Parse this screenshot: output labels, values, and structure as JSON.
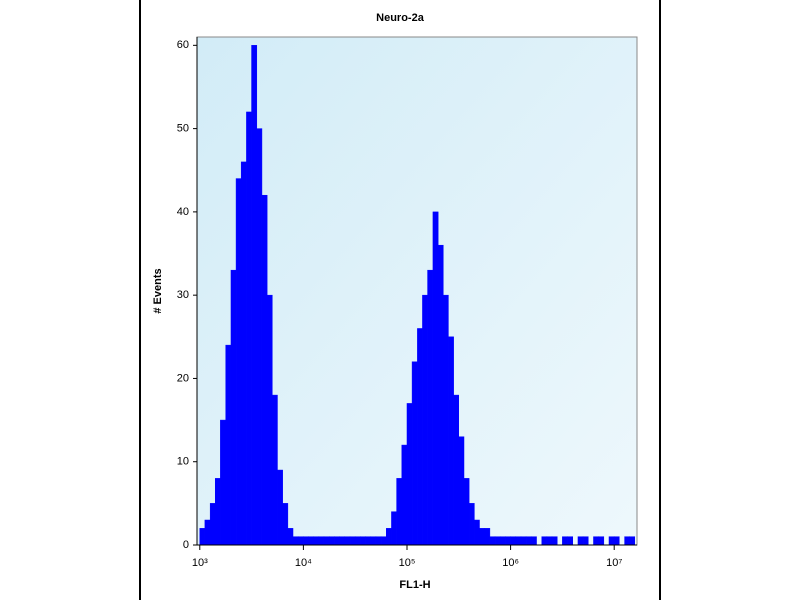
{
  "chart_data": {
    "type": "histogram",
    "title": "Neuro-2a",
    "x_label": "FL1-H",
    "y_label": "# Events",
    "log_x": true,
    "color": "#0000ff",
    "bins": [
      1000,
      1120,
      1260,
      1410,
      1580,
      1780,
      2000,
      2240,
      2510,
      2820,
      3160,
      3550,
      3980,
      4470,
      5010,
      5620,
      6310,
      7080,
      7940,
      8910,
      10000,
      11200,
      12600,
      14100,
      15800,
      17800,
      20000,
      22400,
      25100,
      28200,
      31600,
      35500,
      39800,
      44700,
      50100,
      56200,
      63100,
      70800,
      79400,
      89100,
      100000,
      112000,
      126000,
      141000,
      158000,
      178000,
      200000,
      224000,
      251000,
      282000,
      316000,
      355000,
      398000,
      447000,
      501000,
      562000,
      631000,
      708000,
      794000,
      891000,
      1000000,
      1120000,
      1260000,
      1410000,
      1580000,
      1780000,
      2000000,
      2240000,
      2510000,
      2820000,
      3160000,
      3550000,
      3980000,
      4470000,
      5010000,
      5620000,
      6310000,
      7080000,
      7940000,
      8910000,
      10000000,
      11200000,
      12600000,
      14100000,
      15800000
    ],
    "values": [
      2,
      3,
      5,
      8,
      15,
      24,
      33,
      44,
      46,
      52,
      60,
      50,
      42,
      30,
      18,
      9,
      5,
      2,
      1,
      1,
      1,
      1,
      1,
      1,
      1,
      1,
      1,
      1,
      1,
      1,
      1,
      1,
      1,
      1,
      1,
      1,
      2,
      4,
      8,
      12,
      17,
      22,
      26,
      30,
      33,
      40,
      36,
      30,
      25,
      18,
      13,
      8,
      5,
      3,
      2,
      2,
      1,
      1,
      1,
      1,
      1,
      1,
      1,
      1,
      1,
      0,
      1,
      1,
      1,
      0,
      1,
      1,
      0,
      1,
      1,
      0,
      1,
      1,
      0,
      1,
      1,
      0,
      1,
      1
    ],
    "xlim": [
      940,
      16600000
    ],
    "xticks": [
      {
        "value": 1000,
        "label": "10³"
      },
      {
        "value": 10000,
        "label": "10⁴"
      },
      {
        "value": 100000,
        "label": "10⁵"
      },
      {
        "value": 1000000,
        "label": "10⁶"
      },
      {
        "value": 10000000,
        "label": "10⁷"
      }
    ],
    "ylim": [
      0,
      61
    ],
    "yticks": [
      0,
      10,
      20,
      30,
      40,
      50,
      60
    ]
  }
}
